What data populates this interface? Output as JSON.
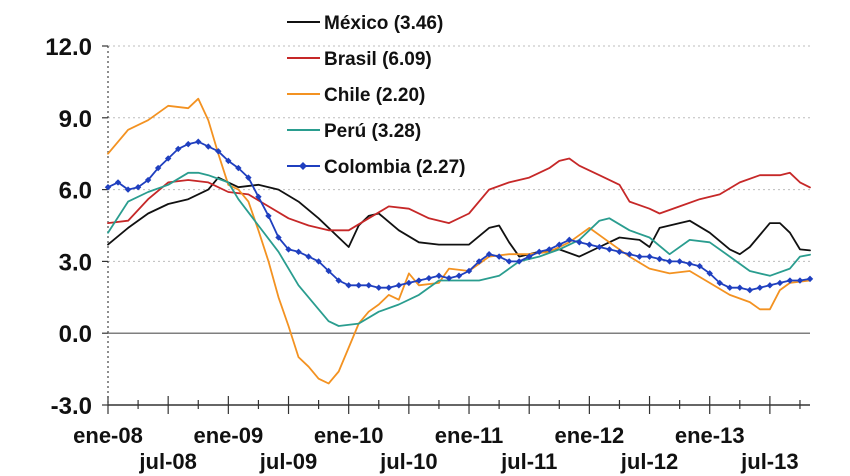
{
  "chart_data": {
    "type": "line",
    "title": "",
    "xlabel": "",
    "ylabel": "",
    "ylim": [
      -3,
      12
    ],
    "yticks": [
      {
        "value": -3,
        "label": "-3.0"
      },
      {
        "value": 0,
        "label": "0.0"
      },
      {
        "value": 3,
        "label": "3.0"
      },
      {
        "value": 6,
        "label": "6.0"
      },
      {
        "value": 9,
        "label": "9.0"
      },
      {
        "value": 12,
        "label": "12.0"
      }
    ],
    "xticks_top": [
      {
        "month": 0,
        "label": "ene-08"
      },
      {
        "month": 12,
        "label": "ene-09"
      },
      {
        "month": 24,
        "label": "ene-10"
      },
      {
        "month": 36,
        "label": "ene-11"
      },
      {
        "month": 48,
        "label": "ene-12"
      },
      {
        "month": 60,
        "label": "ene-13"
      }
    ],
    "xticks_bottom": [
      {
        "month": 6,
        "label": "jul-08"
      },
      {
        "month": 18,
        "label": "jul-09"
      },
      {
        "month": 30,
        "label": "jul-10"
      },
      {
        "month": 42,
        "label": "jul-11"
      },
      {
        "month": 54,
        "label": "jul-12"
      },
      {
        "month": 66,
        "label": "jul-13"
      }
    ],
    "x_range": [
      "ene-08",
      "ago-13"
    ],
    "grid": "dotted horizontal",
    "legend_position": "top-center",
    "series": [
      {
        "name": "México (3.46)",
        "color": "#111111",
        "marker": "none",
        "points": [
          [
            0,
            3.7
          ],
          [
            2,
            4.4
          ],
          [
            4,
            5.0
          ],
          [
            6,
            5.4
          ],
          [
            8,
            5.6
          ],
          [
            10,
            6.0
          ],
          [
            11,
            6.5
          ],
          [
            12,
            6.3
          ],
          [
            13,
            6.1
          ],
          [
            15,
            6.2
          ],
          [
            17,
            6.0
          ],
          [
            19,
            5.5
          ],
          [
            21,
            4.8
          ],
          [
            23,
            4.0
          ],
          [
            24,
            3.6
          ],
          [
            25,
            4.5
          ],
          [
            26,
            4.9
          ],
          [
            27,
            5.0
          ],
          [
            29,
            4.3
          ],
          [
            31,
            3.8
          ],
          [
            33,
            3.7
          ],
          [
            36,
            3.7
          ],
          [
            38,
            4.4
          ],
          [
            39,
            4.5
          ],
          [
            40,
            3.8
          ],
          [
            41,
            3.2
          ],
          [
            43,
            3.4
          ],
          [
            45,
            3.5
          ],
          [
            47,
            3.2
          ],
          [
            49,
            3.6
          ],
          [
            51,
            4.0
          ],
          [
            53,
            3.9
          ],
          [
            54,
            3.6
          ],
          [
            55,
            4.4
          ],
          [
            57,
            4.6
          ],
          [
            58,
            4.7
          ],
          [
            60,
            4.2
          ],
          [
            62,
            3.5
          ],
          [
            63,
            3.3
          ],
          [
            64,
            3.6
          ],
          [
            66,
            4.6
          ],
          [
            67,
            4.6
          ],
          [
            68,
            4.2
          ],
          [
            69,
            3.5
          ],
          [
            70,
            3.46
          ]
        ]
      },
      {
        "name": "Brasil (6.09)",
        "color": "#c62828",
        "marker": "none",
        "points": [
          [
            0,
            4.6
          ],
          [
            2,
            4.7
          ],
          [
            4,
            5.6
          ],
          [
            6,
            6.3
          ],
          [
            8,
            6.4
          ],
          [
            10,
            6.3
          ],
          [
            12,
            5.9
          ],
          [
            14,
            5.8
          ],
          [
            16,
            5.3
          ],
          [
            18,
            4.8
          ],
          [
            20,
            4.5
          ],
          [
            22,
            4.3
          ],
          [
            24,
            4.3
          ],
          [
            26,
            4.8
          ],
          [
            28,
            5.3
          ],
          [
            30,
            5.2
          ],
          [
            32,
            4.8
          ],
          [
            34,
            4.6
          ],
          [
            36,
            5.0
          ],
          [
            38,
            6.0
          ],
          [
            40,
            6.3
          ],
          [
            42,
            6.5
          ],
          [
            44,
            6.9
          ],
          [
            45,
            7.2
          ],
          [
            46,
            7.3
          ],
          [
            47,
            7.0
          ],
          [
            49,
            6.6
          ],
          [
            51,
            6.2
          ],
          [
            52,
            5.5
          ],
          [
            54,
            5.2
          ],
          [
            55,
            5.0
          ],
          [
            57,
            5.3
          ],
          [
            59,
            5.6
          ],
          [
            61,
            5.8
          ],
          [
            63,
            6.3
          ],
          [
            65,
            6.6
          ],
          [
            67,
            6.6
          ],
          [
            68,
            6.7
          ],
          [
            69,
            6.3
          ],
          [
            70,
            6.09
          ]
        ]
      },
      {
        "name": "Chile (2.20)",
        "color": "#f39221",
        "marker": "none",
        "points": [
          [
            0,
            7.5
          ],
          [
            2,
            8.5
          ],
          [
            4,
            8.9
          ],
          [
            6,
            9.5
          ],
          [
            8,
            9.4
          ],
          [
            9,
            9.8
          ],
          [
            10,
            8.9
          ],
          [
            11,
            7.5
          ],
          [
            12,
            6.2
          ],
          [
            13,
            6.0
          ],
          [
            14,
            5.5
          ],
          [
            15,
            4.3
          ],
          [
            16,
            3.0
          ],
          [
            17,
            1.5
          ],
          [
            18,
            0.3
          ],
          [
            19,
            -1.0
          ],
          [
            20,
            -1.4
          ],
          [
            21,
            -1.9
          ],
          [
            22,
            -2.1
          ],
          [
            23,
            -1.6
          ],
          [
            24,
            -0.6
          ],
          [
            25,
            0.4
          ],
          [
            26,
            0.9
          ],
          [
            27,
            1.2
          ],
          [
            28,
            1.6
          ],
          [
            29,
            1.4
          ],
          [
            30,
            2.5
          ],
          [
            31,
            2.0
          ],
          [
            33,
            2.1
          ],
          [
            34,
            2.7
          ],
          [
            36,
            2.6
          ],
          [
            38,
            3.2
          ],
          [
            40,
            3.3
          ],
          [
            42,
            3.3
          ],
          [
            44,
            3.4
          ],
          [
            46,
            3.8
          ],
          [
            48,
            4.4
          ],
          [
            50,
            3.8
          ],
          [
            52,
            3.2
          ],
          [
            54,
            2.7
          ],
          [
            56,
            2.5
          ],
          [
            58,
            2.6
          ],
          [
            60,
            2.1
          ],
          [
            62,
            1.6
          ],
          [
            64,
            1.3
          ],
          [
            65,
            1.0
          ],
          [
            66,
            1.0
          ],
          [
            67,
            1.8
          ],
          [
            68,
            2.1
          ],
          [
            70,
            2.2
          ]
        ]
      },
      {
        "name": "Perú (3.28)",
        "color": "#2a9d8f",
        "marker": "none",
        "points": [
          [
            0,
            4.2
          ],
          [
            2,
            5.5
          ],
          [
            4,
            5.9
          ],
          [
            6,
            6.2
          ],
          [
            8,
            6.7
          ],
          [
            9,
            6.7
          ],
          [
            10,
            6.6
          ],
          [
            12,
            6.3
          ],
          [
            13,
            5.6
          ],
          [
            15,
            4.5
          ],
          [
            17,
            3.4
          ],
          [
            19,
            2.0
          ],
          [
            21,
            1.0
          ],
          [
            22,
            0.5
          ],
          [
            23,
            0.3
          ],
          [
            25,
            0.4
          ],
          [
            27,
            0.9
          ],
          [
            29,
            1.2
          ],
          [
            31,
            1.6
          ],
          [
            33,
            2.2
          ],
          [
            35,
            2.2
          ],
          [
            37,
            2.2
          ],
          [
            39,
            2.4
          ],
          [
            41,
            3.0
          ],
          [
            43,
            3.2
          ],
          [
            45,
            3.5
          ],
          [
            47,
            3.9
          ],
          [
            49,
            4.7
          ],
          [
            50,
            4.8
          ],
          [
            52,
            4.3
          ],
          [
            54,
            4.0
          ],
          [
            56,
            3.3
          ],
          [
            58,
            3.9
          ],
          [
            60,
            3.8
          ],
          [
            62,
            3.2
          ],
          [
            64,
            2.6
          ],
          [
            66,
            2.4
          ],
          [
            68,
            2.7
          ],
          [
            69,
            3.2
          ],
          [
            70,
            3.28
          ]
        ]
      },
      {
        "name": "Colombia (2.27)",
        "color": "#1f3fbf",
        "marker": "diamond",
        "points": [
          [
            0,
            6.1
          ],
          [
            1,
            6.3
          ],
          [
            2,
            6.0
          ],
          [
            3,
            6.1
          ],
          [
            4,
            6.4
          ],
          [
            5,
            6.9
          ],
          [
            6,
            7.3
          ],
          [
            7,
            7.7
          ],
          [
            8,
            7.9
          ],
          [
            9,
            8.0
          ],
          [
            10,
            7.8
          ],
          [
            11,
            7.6
          ],
          [
            12,
            7.2
          ],
          [
            13,
            6.9
          ],
          [
            14,
            6.5
          ],
          [
            15,
            5.7
          ],
          [
            16,
            4.9
          ],
          [
            17,
            4.0
          ],
          [
            18,
            3.5
          ],
          [
            19,
            3.4
          ],
          [
            20,
            3.2
          ],
          [
            21,
            3.0
          ],
          [
            22,
            2.6
          ],
          [
            23,
            2.2
          ],
          [
            24,
            2.0
          ],
          [
            25,
            2.0
          ],
          [
            26,
            2.0
          ],
          [
            27,
            1.9
          ],
          [
            28,
            1.9
          ],
          [
            29,
            2.0
          ],
          [
            30,
            2.1
          ],
          [
            31,
            2.2
          ],
          [
            32,
            2.3
          ],
          [
            33,
            2.4
          ],
          [
            34,
            2.3
          ],
          [
            35,
            2.4
          ],
          [
            36,
            2.6
          ],
          [
            37,
            3.0
          ],
          [
            38,
            3.3
          ],
          [
            39,
            3.2
          ],
          [
            40,
            3.0
          ],
          [
            41,
            3.0
          ],
          [
            42,
            3.2
          ],
          [
            43,
            3.4
          ],
          [
            44,
            3.5
          ],
          [
            45,
            3.7
          ],
          [
            46,
            3.9
          ],
          [
            47,
            3.8
          ],
          [
            48,
            3.7
          ],
          [
            49,
            3.6
          ],
          [
            50,
            3.5
          ],
          [
            51,
            3.4
          ],
          [
            52,
            3.3
          ],
          [
            53,
            3.2
          ],
          [
            54,
            3.2
          ],
          [
            55,
            3.1
          ],
          [
            56,
            3.0
          ],
          [
            57,
            3.0
          ],
          [
            58,
            2.9
          ],
          [
            59,
            2.8
          ],
          [
            60,
            2.5
          ],
          [
            61,
            2.1
          ],
          [
            62,
            1.9
          ],
          [
            63,
            1.9
          ],
          [
            64,
            1.8
          ],
          [
            65,
            1.9
          ],
          [
            66,
            2.0
          ],
          [
            67,
            2.1
          ],
          [
            68,
            2.2
          ],
          [
            69,
            2.2
          ],
          [
            70,
            2.27
          ]
        ]
      }
    ]
  }
}
